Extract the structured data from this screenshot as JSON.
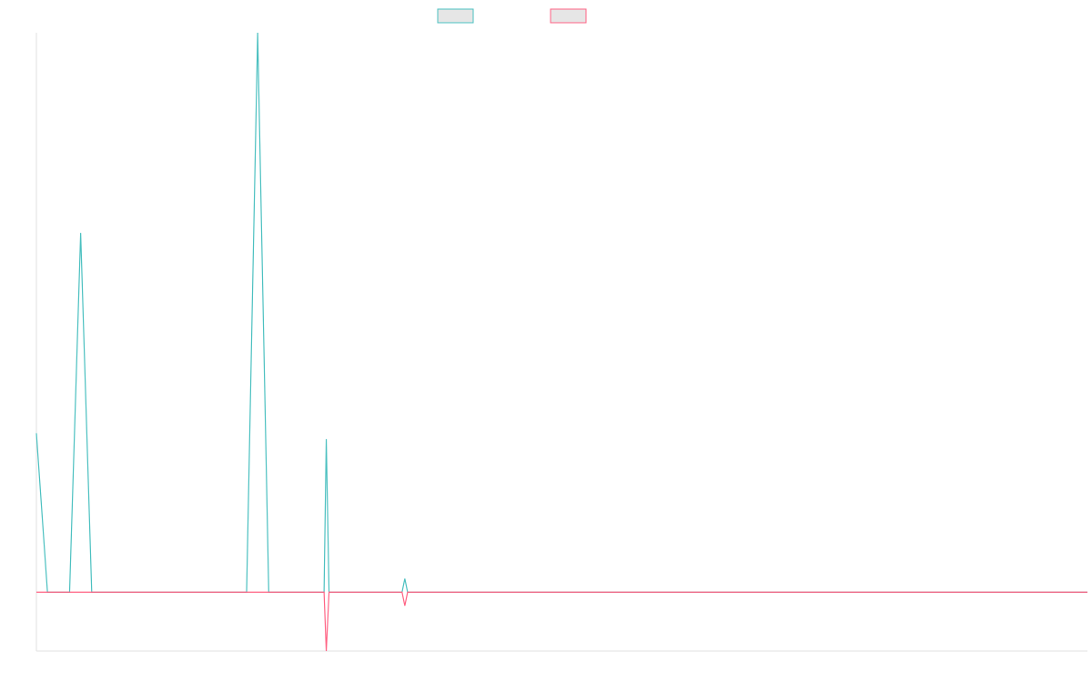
{
  "chart_data": {
    "type": "line",
    "title": "",
    "xlabel": "",
    "ylabel": "",
    "x_count": 96,
    "ylim": [
      -10,
      95
    ],
    "grid": false,
    "legend_position": "top-center",
    "series": [
      {
        "color": "#4bc0c0",
        "values": [
          27,
          0,
          0,
          0,
          61,
          0,
          0,
          0,
          0,
          0,
          0,
          0,
          0,
          0,
          0,
          0,
          0,
          0,
          0,
          0,
          95,
          0,
          0,
          0,
          0,
          0,
          0,
          0,
          0,
          0,
          0,
          0,
          0,
          0,
          0,
          0,
          0,
          0,
          0,
          0,
          0,
          0,
          0,
          0,
          0,
          0,
          0,
          0,
          0,
          0,
          0,
          0,
          0,
          0,
          0,
          0,
          0,
          0,
          0,
          0,
          0,
          0,
          0,
          0,
          0,
          0,
          0,
          0,
          0,
          0,
          0,
          0,
          0,
          0,
          0,
          0,
          0,
          0,
          0,
          0,
          0,
          0,
          0,
          0,
          0,
          0,
          0,
          0,
          0,
          0,
          0,
          0,
          0,
          0,
          0,
          0
        ],
        "spikes": [
          {
            "index": 26.2,
            "value": 26
          },
          {
            "index": 33.3,
            "value": 2.3
          }
        ]
      },
      {
        "color": "#ff6384",
        "values": [
          0,
          0,
          0,
          0,
          0,
          0,
          0,
          0,
          0,
          0,
          0,
          0,
          0,
          0,
          0,
          0,
          0,
          0,
          0,
          0,
          0,
          0,
          0,
          0,
          0,
          0,
          0,
          0,
          0,
          0,
          0,
          0,
          0,
          0,
          0,
          0,
          0,
          0,
          0,
          0,
          0,
          0,
          0,
          0,
          0,
          0,
          0,
          0,
          0,
          0,
          0,
          0,
          0,
          0,
          0,
          0,
          0,
          0,
          0,
          0,
          0,
          0,
          0,
          0,
          0,
          0,
          0,
          0,
          0,
          0,
          0,
          0,
          0,
          0,
          0,
          0,
          0,
          0,
          0,
          0,
          0,
          0,
          0,
          0,
          0,
          0,
          0,
          0,
          0,
          0,
          0,
          0,
          0,
          0,
          0,
          0
        ],
        "spikes": [
          {
            "index": 26.2,
            "value": -10
          },
          {
            "index": 33.3,
            "value": -2.3
          }
        ]
      }
    ]
  }
}
